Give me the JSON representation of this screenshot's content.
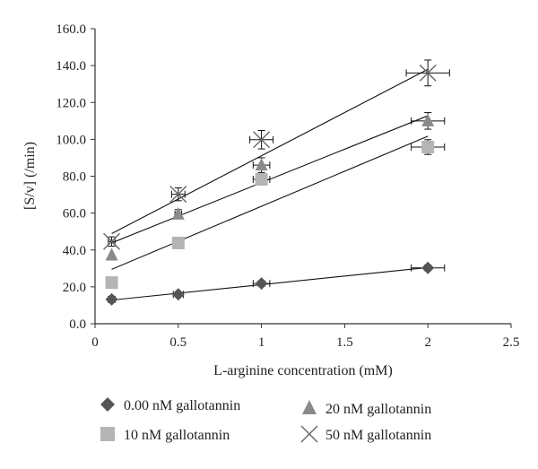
{
  "chart_data": {
    "type": "scatter",
    "xlabel": "L-arginine concentration (mM)",
    "ylabel": "[S/v] (/min)",
    "xlim": [
      0,
      2.5
    ],
    "ylim": [
      0,
      160
    ],
    "x_ticks": [
      "0",
      "0.5",
      "1",
      "1.5",
      "2",
      "2.5"
    ],
    "y_ticks": [
      "0.0",
      "20.0",
      "40.0",
      "60.0",
      "80.0",
      "100.0",
      "120.0",
      "140.0",
      "160.0"
    ],
    "grid": false,
    "legend_position": "bottom",
    "series": [
      {
        "name": "0.00 nM gallotannin",
        "marker": "diamond",
        "color": "#555555",
        "x": [
          0.1,
          0.5,
          1,
          2
        ],
        "y": [
          13.2,
          15.9,
          21.8,
          30.3
        ],
        "x_err": [
          0.02,
          0.03,
          0.05,
          0.1
        ],
        "y_err": [
          1.0,
          1.2,
          1.5,
          1.5
        ],
        "trendline": [
          11.9,
          9.3
        ]
      },
      {
        "name": "10 nM gallotannin",
        "marker": "square",
        "color": "#b4b4b4",
        "x": [
          0.1,
          0.5,
          1,
          2
        ],
        "y": [
          22.3,
          43.8,
          78.3,
          95.8
        ],
        "x_err": [
          0.0,
          0.0,
          0.05,
          0.1
        ],
        "y_err": [
          0.0,
          0.0,
          3.0,
          4.0
        ],
        "trendline": [
          25.7,
          38.0
        ]
      },
      {
        "name": "20 nM gallotannin",
        "marker": "triangle",
        "color": "#8a8a8a",
        "x": [
          0.1,
          0.5,
          1,
          2
        ],
        "y": [
          37.2,
          59.4,
          86.0,
          110.0
        ],
        "x_err": [
          0.0,
          0.02,
          0.05,
          0.1
        ],
        "y_err": [
          0.0,
          2.5,
          4.0,
          4.5
        ],
        "trendline": [
          40.2,
          36.3
        ]
      },
      {
        "name": "50 nM gallotannin",
        "marker": "x",
        "color": "#666666",
        "x": [
          0.1,
          0.5,
          1,
          2
        ],
        "y": [
          44.6,
          70.2,
          99.8,
          136.0
        ],
        "x_err": [
          0.02,
          0.04,
          0.07,
          0.13
        ],
        "y_err": [
          2.5,
          3.5,
          5.0,
          7.0
        ],
        "trendline": [
          44.2,
          46.9
        ]
      }
    ]
  }
}
